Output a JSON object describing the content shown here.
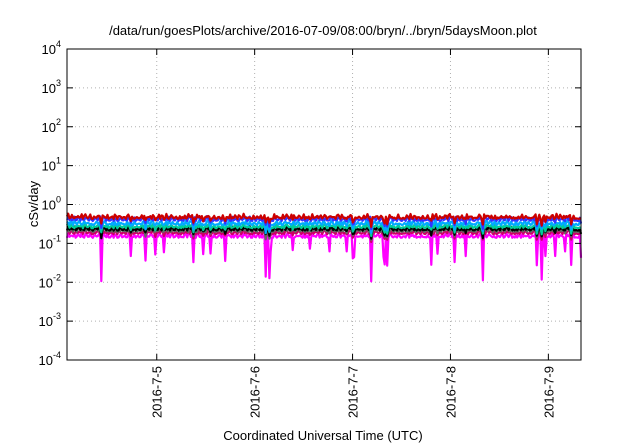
{
  "chart_data": {
    "type": "line",
    "title": "/data/run/goesPlots/archive/2016-07-09/08:00/bryn/../bryn/5daysMoon.plot",
    "xlabel": "Coordinated Universal Time (UTC)",
    "ylabel": "cSv/day",
    "yscale": "log",
    "ylim": [
      0.0001,
      10000
    ],
    "xlim": [
      "2016-07-04 02:00",
      "2016-07-09 08:00"
    ],
    "grid": true,
    "legend": "none",
    "x_ticks": [
      "2016-7-5",
      "2016-7-6",
      "2016-7-7",
      "2016-7-8",
      "2016-7-9"
    ],
    "y_ticks": [
      {
        "base": "10",
        "exp": "-4"
      },
      {
        "base": "10",
        "exp": "-3"
      },
      {
        "base": "10",
        "exp": "-2"
      },
      {
        "base": "10",
        "exp": "-1"
      },
      {
        "base": "10",
        "exp": "0"
      },
      {
        "base": "10",
        "exp": "1"
      },
      {
        "base": "10",
        "exp": "2"
      },
      {
        "base": "10",
        "exp": "3"
      },
      {
        "base": "10",
        "exp": "4"
      }
    ],
    "series": [
      {
        "color": "#cc0000",
        "level": 0.52,
        "dip_depth": 0.7
      },
      {
        "color": "#3333ff",
        "level": 0.46,
        "dip_depth": 0.7
      },
      {
        "color": "#00aaff",
        "level": 0.36,
        "dip_depth": 0.7
      },
      {
        "color": "#00cc99",
        "level": 0.3,
        "dip_depth": 0.7
      },
      {
        "color": "#000000",
        "level": 0.26,
        "dip_depth": 0.7
      },
      {
        "color": "#666666",
        "level": 0.24,
        "dip_depth": 0.7
      },
      {
        "color": "#cc0066",
        "level": 0.21,
        "dip_depth": 0.7
      },
      {
        "color": "#ff00ff",
        "level": 0.17,
        "dip_depth": 0.35
      }
    ]
  }
}
